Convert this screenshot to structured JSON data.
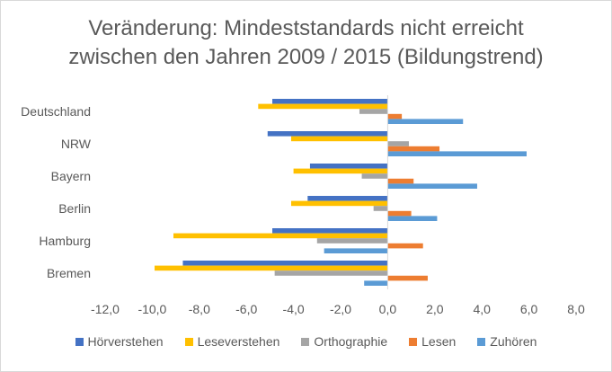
{
  "chart_data": {
    "type": "bar",
    "orientation": "horizontal",
    "title_lines": [
      "Veränderung: Mindeststandards nicht erreicht",
      "zwischen den Jahren 2009 / 2015 (Bildungstrend)"
    ],
    "categories": [
      "Deutschland",
      "NRW",
      "Bayern",
      "Berlin",
      "Hamburg",
      "Bremen"
    ],
    "series": [
      {
        "name": "Hörverstehen",
        "color": "#4472c4",
        "values": [
          -4.9,
          -5.1,
          -3.3,
          -3.4,
          -4.9,
          -8.7
        ]
      },
      {
        "name": "Leseverstehen",
        "color": "#ffc000",
        "values": [
          -5.5,
          -4.1,
          -4.0,
          -4.1,
          -9.1,
          -9.9
        ]
      },
      {
        "name": "Orthographie",
        "color": "#a5a5a5",
        "values": [
          -1.2,
          0.9,
          -1.1,
          -0.6,
          -3.0,
          -4.8
        ]
      },
      {
        "name": "Lesen",
        "color": "#ed7d31",
        "values": [
          0.6,
          2.2,
          1.1,
          1.0,
          1.5,
          1.7
        ]
      },
      {
        "name": "Zuhören",
        "color": "#5b9bd5",
        "values": [
          3.2,
          5.9,
          3.8,
          2.1,
          -2.7,
          -1.0
        ]
      }
    ],
    "xlim": [
      -12,
      8
    ],
    "xticks": [
      -12,
      -10,
      -8,
      -6,
      -4,
      -2,
      0,
      2,
      4,
      6,
      8
    ],
    "xtick_labels": [
      "-12,0",
      "-10,0",
      "-8,0",
      "-6,0",
      "-4,0",
      "-2,0",
      "0,0",
      "2,0",
      "4,0",
      "6,0",
      "8,0"
    ],
    "xlabel": "",
    "ylabel": "",
    "grid": false,
    "legend_position": "bottom"
  }
}
